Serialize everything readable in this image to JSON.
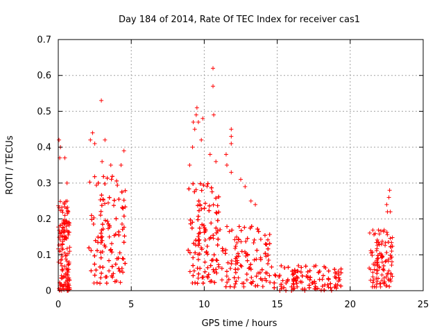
{
  "chart_data": {
    "type": "scatter",
    "title": "Day 184 of 2014, Rate Of TEC Index for receiver cas1",
    "xlabel": "GPS time / hours",
    "ylabel": "ROTI / TECUs",
    "xlim": [
      0,
      25
    ],
    "ylim": [
      0,
      0.7
    ],
    "xticks": [
      0,
      5,
      10,
      15,
      20,
      25
    ],
    "yticks": [
      0,
      0.1,
      0.2,
      0.3,
      0.4,
      0.5,
      0.6,
      0.7
    ],
    "grid": true,
    "marker": "+",
    "color": "#ff0000",
    "clusters": [
      {
        "x_start": 0.0,
        "x_end": 0.8,
        "typical_range": [
          0.0,
          0.25
        ],
        "count": 160
      },
      {
        "x_start": 2.1,
        "x_end": 4.6,
        "typical_range": [
          0.02,
          0.32
        ],
        "count": 360
      },
      {
        "x_start": 8.9,
        "x_end": 11.0,
        "typical_range": [
          0.02,
          0.3
        ],
        "count": 360
      },
      {
        "x_start": 11.0,
        "x_end": 14.5,
        "typical_range": [
          0.01,
          0.18
        ],
        "count": 300
      },
      {
        "x_start": 14.5,
        "x_end": 19.4,
        "typical_range": [
          0.0,
          0.07
        ],
        "count": 360
      },
      {
        "x_start": 21.3,
        "x_end": 22.9,
        "typical_range": [
          0.01,
          0.17
        ],
        "count": 140
      }
    ],
    "notable_points": [
      {
        "x": 0.05,
        "y": 0.42
      },
      {
        "x": 0.15,
        "y": 0.4
      },
      {
        "x": 0.1,
        "y": 0.37
      },
      {
        "x": 0.45,
        "y": 0.37
      },
      {
        "x": 0.6,
        "y": 0.3
      },
      {
        "x": 2.2,
        "y": 0.42
      },
      {
        "x": 2.35,
        "y": 0.44
      },
      {
        "x": 2.5,
        "y": 0.41
      },
      {
        "x": 2.95,
        "y": 0.53
      },
      {
        "x": 3.2,
        "y": 0.42
      },
      {
        "x": 4.5,
        "y": 0.39
      },
      {
        "x": 3.6,
        "y": 0.35
      },
      {
        "x": 3.0,
        "y": 0.36
      },
      {
        "x": 4.3,
        "y": 0.35
      },
      {
        "x": 9.0,
        "y": 0.35
      },
      {
        "x": 9.2,
        "y": 0.4
      },
      {
        "x": 9.25,
        "y": 0.47
      },
      {
        "x": 9.35,
        "y": 0.45
      },
      {
        "x": 9.45,
        "y": 0.49
      },
      {
        "x": 9.5,
        "y": 0.51
      },
      {
        "x": 9.6,
        "y": 0.47
      },
      {
        "x": 9.8,
        "y": 0.42
      },
      {
        "x": 9.9,
        "y": 0.48
      },
      {
        "x": 10.6,
        "y": 0.62
      },
      {
        "x": 10.6,
        "y": 0.57
      },
      {
        "x": 10.65,
        "y": 0.49
      },
      {
        "x": 10.4,
        "y": 0.38
      },
      {
        "x": 10.8,
        "y": 0.36
      },
      {
        "x": 11.5,
        "y": 0.38
      },
      {
        "x": 11.55,
        "y": 0.35
      },
      {
        "x": 11.85,
        "y": 0.45
      },
      {
        "x": 11.85,
        "y": 0.43
      },
      {
        "x": 11.85,
        "y": 0.41
      },
      {
        "x": 11.85,
        "y": 0.33
      },
      {
        "x": 12.5,
        "y": 0.31
      },
      {
        "x": 12.8,
        "y": 0.29
      },
      {
        "x": 13.2,
        "y": 0.25
      },
      {
        "x": 13.5,
        "y": 0.24
      },
      {
        "x": 22.65,
        "y": 0.26
      },
      {
        "x": 22.7,
        "y": 0.28
      },
      {
        "x": 22.5,
        "y": 0.24
      },
      {
        "x": 22.55,
        "y": 0.22
      },
      {
        "x": 22.75,
        "y": 0.22
      }
    ]
  }
}
